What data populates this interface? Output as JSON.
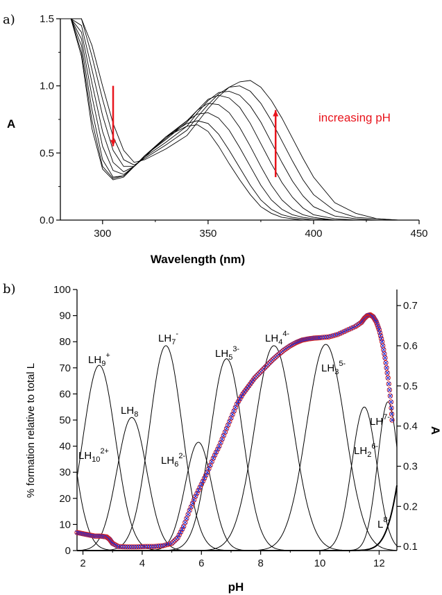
{
  "chart_data": [
    {
      "panel": "a)",
      "type": "line",
      "xlabel": "Wavelength (nm)",
      "ylabel": "A",
      "xlim": [
        280,
        450
      ],
      "ylim": [
        0.0,
        1.5
      ],
      "xticks": [
        "300",
        "350",
        "400",
        "450"
      ],
      "yticks": [
        "0.0",
        "0.5",
        "1.0",
        "1.5"
      ],
      "x": [
        280,
        285,
        290,
        295,
        300,
        305,
        310,
        315,
        320,
        330,
        340,
        345,
        350,
        355,
        360,
        365,
        370,
        375,
        380,
        385,
        390,
        395,
        400,
        410,
        420,
        430,
        440,
        450
      ],
      "series": [
        {
          "values": [
            1.5,
            1.5,
            1.22,
            0.68,
            0.38,
            0.3,
            0.32,
            0.4,
            0.47,
            0.62,
            0.7,
            0.71,
            0.66,
            0.55,
            0.42,
            0.3,
            0.19,
            0.1,
            0.05,
            0.02,
            0.01,
            0.0,
            0.0,
            0.0,
            0.0,
            0.0,
            0.0,
            0.0
          ]
        },
        {
          "values": [
            1.5,
            1.5,
            1.25,
            0.74,
            0.4,
            0.31,
            0.33,
            0.4,
            0.47,
            0.62,
            0.72,
            0.74,
            0.72,
            0.64,
            0.52,
            0.39,
            0.26,
            0.15,
            0.08,
            0.04,
            0.02,
            0.01,
            0.0,
            0.0,
            0.0,
            0.0,
            0.0,
            0.0
          ]
        },
        {
          "values": [
            1.5,
            1.5,
            1.3,
            0.82,
            0.45,
            0.32,
            0.33,
            0.4,
            0.48,
            0.62,
            0.74,
            0.79,
            0.8,
            0.76,
            0.67,
            0.54,
            0.4,
            0.26,
            0.15,
            0.08,
            0.04,
            0.02,
            0.01,
            0.0,
            0.0,
            0.0,
            0.0,
            0.0
          ]
        },
        {
          "values": [
            1.5,
            1.5,
            1.35,
            0.92,
            0.55,
            0.37,
            0.34,
            0.4,
            0.48,
            0.61,
            0.74,
            0.82,
            0.87,
            0.86,
            0.8,
            0.69,
            0.55,
            0.4,
            0.26,
            0.15,
            0.08,
            0.04,
            0.02,
            0.0,
            0.0,
            0.0,
            0.0,
            0.0
          ]
        },
        {
          "values": [
            1.5,
            1.5,
            1.4,
            1.02,
            0.66,
            0.43,
            0.36,
            0.4,
            0.48,
            0.6,
            0.73,
            0.82,
            0.9,
            0.93,
            0.91,
            0.84,
            0.72,
            0.57,
            0.42,
            0.28,
            0.17,
            0.09,
            0.04,
            0.01,
            0.0,
            0.0,
            0.0,
            0.0
          ]
        },
        {
          "values": [
            1.5,
            1.5,
            1.45,
            1.12,
            0.78,
            0.52,
            0.4,
            0.4,
            0.47,
            0.58,
            0.7,
            0.8,
            0.89,
            0.95,
            0.96,
            0.93,
            0.85,
            0.73,
            0.58,
            0.43,
            0.29,
            0.18,
            0.1,
            0.03,
            0.01,
            0.0,
            0.0,
            0.0
          ]
        },
        {
          "values": [
            1.5,
            1.5,
            1.5,
            1.22,
            0.9,
            0.62,
            0.45,
            0.41,
            0.46,
            0.56,
            0.67,
            0.77,
            0.86,
            0.94,
            0.99,
            1.0,
            0.96,
            0.87,
            0.74,
            0.59,
            0.44,
            0.3,
            0.19,
            0.07,
            0.02,
            0.01,
            0.0,
            0.0
          ]
        },
        {
          "values": [
            1.5,
            1.5,
            1.5,
            1.3,
            1.0,
            0.72,
            0.52,
            0.43,
            0.45,
            0.53,
            0.63,
            0.73,
            0.83,
            0.92,
            0.99,
            1.03,
            1.04,
            0.99,
            0.89,
            0.76,
            0.61,
            0.46,
            0.32,
            0.13,
            0.05,
            0.01,
            0.0,
            0.0
          ]
        }
      ],
      "annotations": [
        {
          "text": "increasing pH",
          "color": "#e8141c"
        }
      ],
      "arrows": [
        {
          "x": 305,
          "from": 1.0,
          "to": 0.55,
          "color": "#e8141c"
        },
        {
          "x": 382,
          "from": 0.32,
          "to": 0.82,
          "color": "#e8141c"
        }
      ]
    },
    {
      "panel": "b)",
      "type": "line",
      "xlabel": "pH",
      "ylabel_left": "% formation relative to total L",
      "ylabel_right": "A",
      "xlim": [
        1.8,
        12.6
      ],
      "ylim_left": [
        0,
        100
      ],
      "ylim_right": [
        0.09,
        0.74
      ],
      "xticks": [
        "2",
        "4",
        "6",
        "8",
        "10",
        "12"
      ],
      "yticks_left": [
        "0",
        "10",
        "20",
        "30",
        "40",
        "50",
        "60",
        "70",
        "80",
        "90",
        "100"
      ],
      "yticks_right": [
        "0.1",
        "0.2",
        "0.3",
        "0.4",
        "0.5",
        "0.6",
        "0.7"
      ],
      "species": [
        {
          "label": "LH",
          "sub": "10",
          "sup": "2+",
          "pH": 1.0,
          "peak": 85,
          "width": 0.55
        },
        {
          "label": "LH",
          "sub": "9",
          "sup": "+",
          "pH": 2.55,
          "peak": 71,
          "width": 0.55
        },
        {
          "label": "LH",
          "sub": "8",
          "sup": "",
          "pH": 3.65,
          "peak": 51,
          "width": 0.5
        },
        {
          "label": "LH",
          "sub": "7",
          "sup": "-",
          "pH": 4.8,
          "peak": 78.5,
          "width": 0.55
        },
        {
          "label": "LH",
          "sub": "6",
          "sup": "2-",
          "pH": 5.9,
          "peak": 41.5,
          "width": 0.45
        },
        {
          "label": "LH",
          "sub": "5",
          "sup": "3-",
          "pH": 6.85,
          "peak": 73.5,
          "width": 0.55
        },
        {
          "label": "LH",
          "sub": "4",
          "sup": "4-",
          "pH": 8.45,
          "peak": 78.5,
          "width": 0.65
        },
        {
          "label": "LH",
          "sub": "3",
          "sup": "5-",
          "pH": 10.2,
          "peak": 79,
          "width": 0.65
        },
        {
          "label": "LH",
          "sub": "2",
          "sup": "6-",
          "pH": 11.5,
          "peak": 55,
          "width": 0.42
        },
        {
          "label": "LH",
          "sub": "",
          "sup": "7-",
          "pH": 12.3,
          "peak": 57,
          "width": 0.35
        },
        {
          "label": "L",
          "sub": "",
          "sup": "8-",
          "pH": 13.6,
          "peak": 100,
          "width": 0.6
        }
      ],
      "absorbance_points": {
        "pH": [
          1.8,
          2.0,
          2.2,
          2.4,
          2.6,
          2.8,
          2.9,
          3.0,
          3.2,
          3.5,
          3.8,
          4.1,
          4.4,
          4.7,
          5.0,
          5.2,
          5.4,
          5.6,
          5.8,
          6.0,
          6.2,
          6.4,
          6.6,
          6.8,
          7.0,
          7.2,
          7.4,
          7.6,
          7.8,
          8.0,
          8.2,
          8.4,
          8.6,
          8.8,
          9.0,
          9.2,
          9.4,
          9.6,
          9.8,
          10.0,
          10.3,
          10.6,
          10.9,
          11.2,
          11.4,
          11.5,
          11.6,
          11.7,
          11.8,
          11.9,
          12.0,
          12.1,
          12.2,
          12.3,
          12.4,
          12.45
        ],
        "A": [
          0.135,
          0.132,
          0.129,
          0.126,
          0.126,
          0.124,
          0.118,
          0.108,
          0.1,
          0.099,
          0.099,
          0.1,
          0.1,
          0.102,
          0.108,
          0.122,
          0.15,
          0.19,
          0.225,
          0.255,
          0.285,
          0.32,
          0.35,
          0.385,
          0.42,
          0.455,
          0.48,
          0.5,
          0.52,
          0.535,
          0.55,
          0.565,
          0.578,
          0.59,
          0.6,
          0.608,
          0.614,
          0.617,
          0.619,
          0.62,
          0.622,
          0.628,
          0.638,
          0.648,
          0.658,
          0.668,
          0.675,
          0.677,
          0.672,
          0.66,
          0.64,
          0.61,
          0.57,
          0.52,
          0.46,
          0.4
        ],
        "marker_colors": [
          "#d6201c",
          "#1d2bd6"
        ]
      }
    }
  ]
}
